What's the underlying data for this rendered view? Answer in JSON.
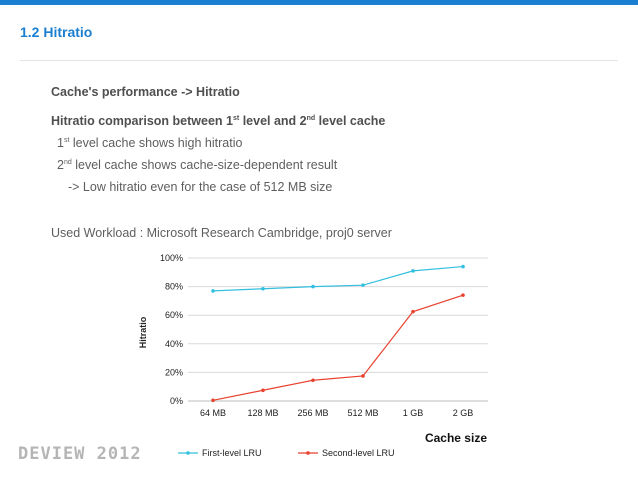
{
  "slide": {
    "section_title": "1.2  Hitratio",
    "heading1": "Cache's performance -> Hitratio",
    "heading2": {
      "p1": "Hitratio comparison between 1",
      "s1": "st",
      "p2": " level and 2",
      "s2": "nd",
      "p3": " level cache"
    },
    "bullet1": {
      "p1": "1",
      "s1": "st",
      "p2": " level cache shows high hitratio"
    },
    "bullet2": {
      "p1": "2",
      "s1": "nd",
      "p2": " level cache shows cache-size-dependent result"
    },
    "bullet3": "-> Low hitratio even for the case of 512 MB size",
    "workload": "Used Workload : Microsoft Research Cambridge, proj0 server",
    "logo": "DEVIEW 2012",
    "colors": {
      "accent": "#1a7fd0",
      "series1": "#33bfe0",
      "series2": "#e8412e"
    }
  },
  "chart_data": {
    "type": "line",
    "categories": [
      "64 MB",
      "128 MB",
      "256 MB",
      "512 MB",
      "1 GB",
      "2 GB"
    ],
    "series": [
      {
        "name": "First-level LRU",
        "values": [
          77,
          78.5,
          80,
          81,
          91,
          94
        ]
      },
      {
        "name": "Second-level LRU",
        "values": [
          0.5,
          7.5,
          14.5,
          17.5,
          62.5,
          74
        ]
      }
    ],
    "y_ticks": [
      "0%",
      "20%",
      "40%",
      "60%",
      "80%",
      "100%"
    ],
    "ylim": [
      0,
      100
    ],
    "ylabel": "Hitratio",
    "xlabel": "Cache size",
    "legend_position": "bottom",
    "grid": true
  }
}
